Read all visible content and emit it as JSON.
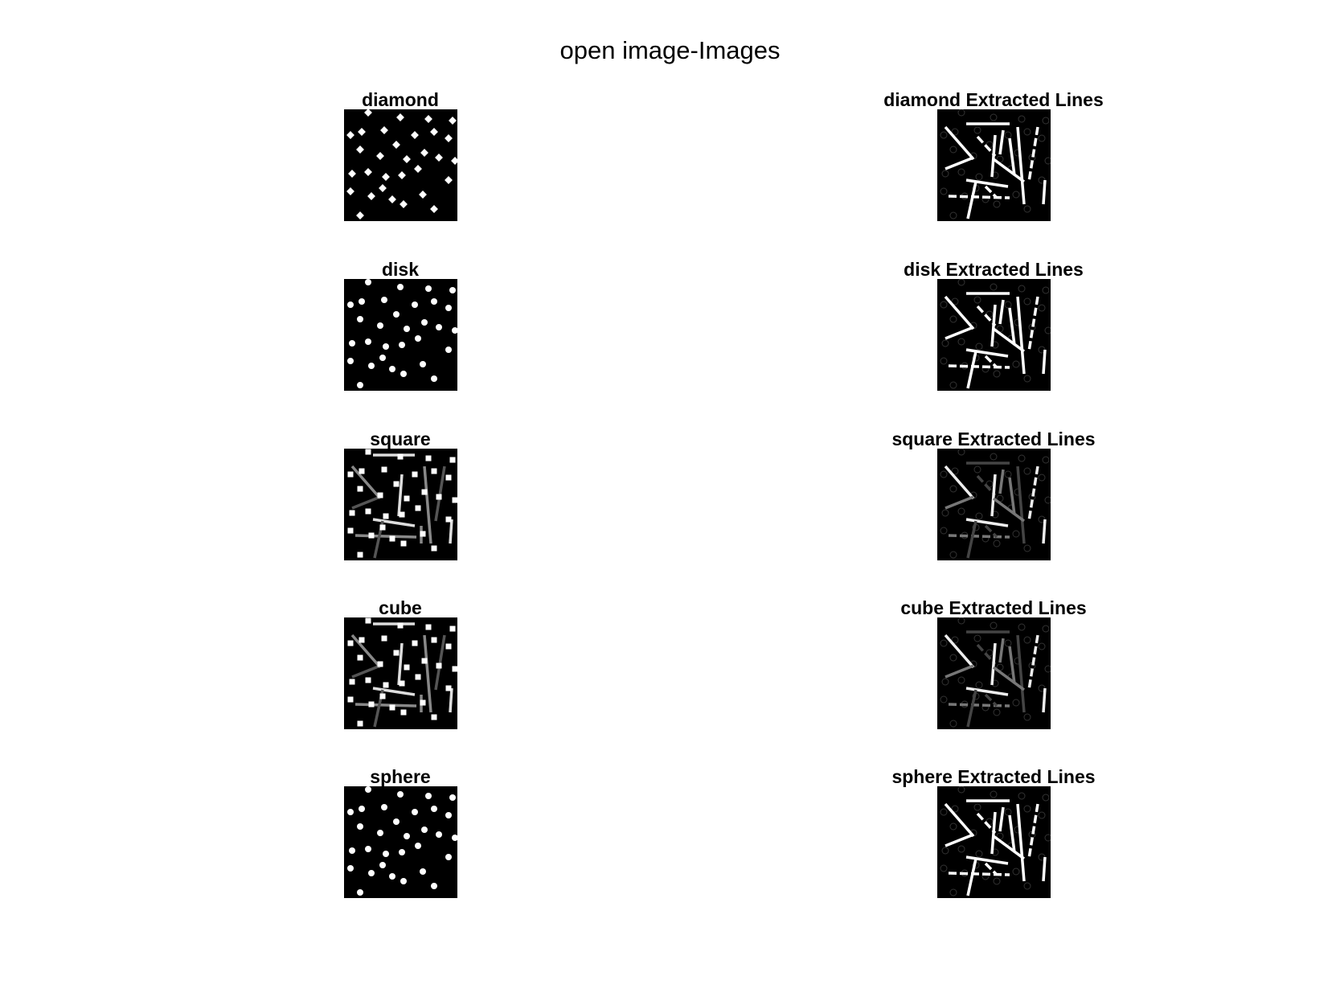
{
  "figure": {
    "title": "open image-Images"
  },
  "rows": [
    {
      "left_title": "diamond",
      "right_title": "diamond Extracted Lines",
      "left_kind": "dots",
      "left_shape": "diamond",
      "right_kind": "lines"
    },
    {
      "left_title": "disk",
      "right_title": "disk Extracted Lines",
      "left_kind": "dots",
      "left_shape": "disk",
      "right_kind": "lines"
    },
    {
      "left_title": "square",
      "right_title": "square Extracted Lines",
      "left_kind": "mixed",
      "left_shape": "square",
      "right_kind": "lines-dim"
    },
    {
      "left_title": "cube",
      "right_title": "cube Extracted Lines",
      "left_kind": "mixed",
      "left_shape": "square",
      "right_kind": "lines-dim"
    },
    {
      "left_title": "sphere",
      "right_title": "sphere Extracted Lines",
      "left_kind": "dots",
      "left_shape": "disk",
      "right_kind": "lines"
    }
  ]
}
